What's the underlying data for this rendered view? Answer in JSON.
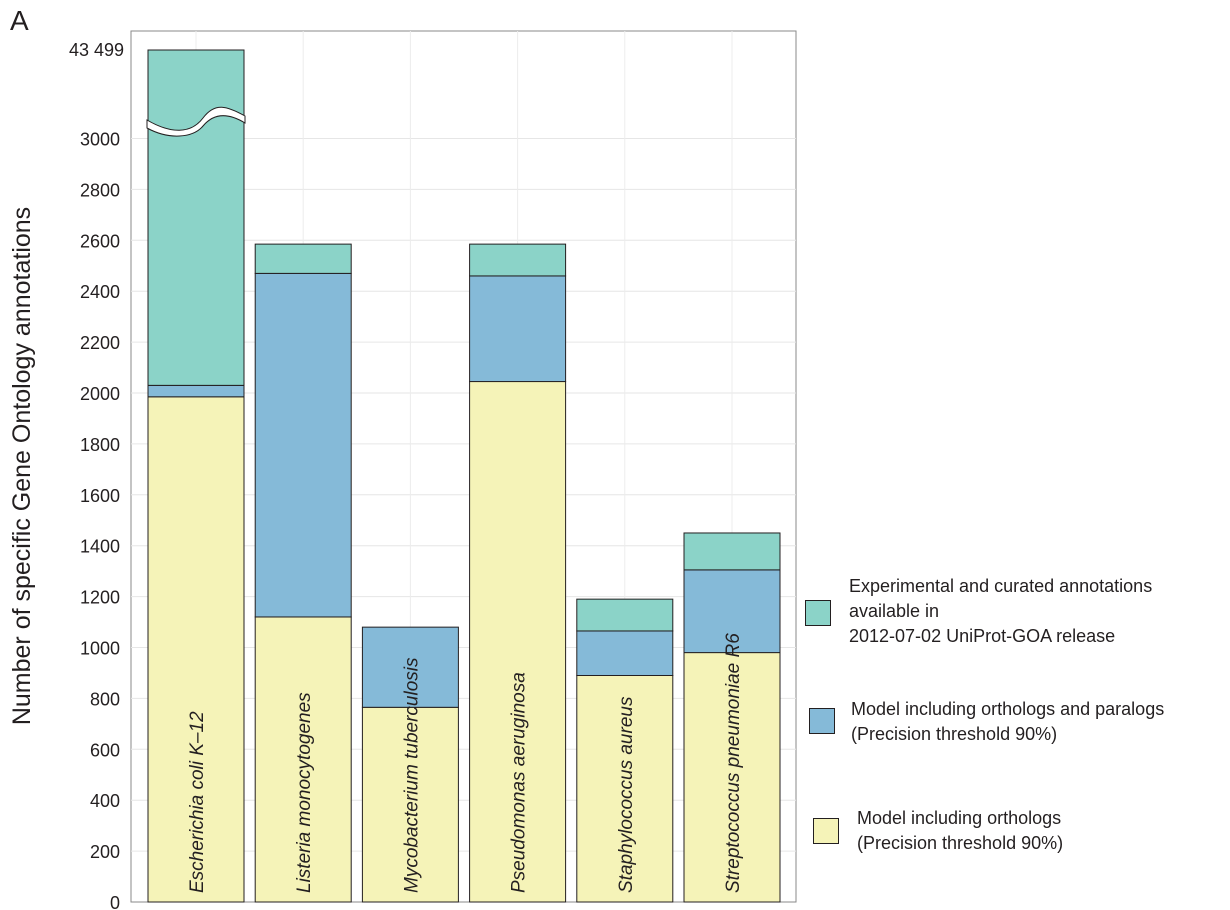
{
  "panel_label": "A",
  "chart_data": {
    "type": "bar",
    "stacked": true,
    "ylabel": "Number of specific Gene Ontology annotations",
    "ylim": [
      0,
      3000
    ],
    "yticks": [
      0,
      200,
      400,
      600,
      800,
      1000,
      1200,
      1400,
      1600,
      1800,
      2000,
      2200,
      2400,
      2600,
      2800,
      3000
    ],
    "axis_break": {
      "top_label": "43 499",
      "top_value": 43499
    },
    "grid": true,
    "legend_position": "right",
    "categories": [
      "Escherichia coli K–12",
      "Listeria monocytogenes",
      "Mycobacterium tuberculosis",
      "Pseudomonas aeruginosa",
      "Staphylococcus aureus",
      "Streptococcus pneumoniae R6"
    ],
    "series": [
      {
        "name": "Model including orthologs\n(Precision threshold 90%)",
        "color": "#f5f3b8",
        "values": [
          1985,
          1120,
          765,
          2045,
          890,
          980
        ]
      },
      {
        "name": "Model including orthologs and paralogs\n(Precision threshold 90%)",
        "color": "#85bad8",
        "values": [
          45,
          1350,
          315,
          415,
          175,
          325
        ]
      },
      {
        "name": "Experimental and curated annotations\navailable in\n2012-07-02 UniProt-GOA release",
        "color": "#8bd3c8",
        "values": [
          41469,
          115,
          0,
          125,
          125,
          145
        ]
      }
    ]
  }
}
